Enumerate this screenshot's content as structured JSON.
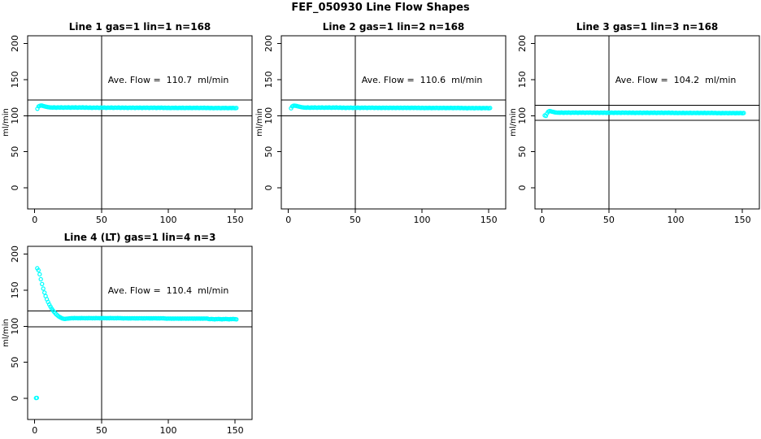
{
  "title": "FEF_050930  Line Flow Shapes",
  "marker_color": "#00FFFF",
  "chart_data": [
    {
      "type": "scatter",
      "title": "Line 1 gas=1 lin=1 n=168",
      "annotation": "Ave. Flow =  110.7  ml/min",
      "ave_flow": 110.7,
      "ylabel": "ml/min",
      "x_ticks": [
        0,
        50,
        100,
        150
      ],
      "y_ticks": [
        0,
        50,
        100,
        150,
        200
      ],
      "xlim": [
        -6,
        163
      ],
      "ylim": [
        -29,
        211
      ],
      "vline_x": 50,
      "hlines": [
        99.6,
        121.8
      ],
      "marker": "open-circle",
      "grid": {
        "row": 0,
        "col": 0
      },
      "x_start": 2,
      "x_step": 0.892,
      "y": [
        109.5,
        112.8,
        113.6,
        114.0,
        113.8,
        113.4,
        112.9,
        112.5,
        112.1,
        111.8,
        111.5,
        111.3,
        111.3,
        111.1,
        111.5,
        111.2,
        111.0,
        111.4,
        111.3,
        111.1,
        111.5,
        111.2,
        111.0,
        111.4,
        111.3,
        111.1,
        111.5,
        111.2,
        111.0,
        111.4,
        111.3,
        111.1,
        111.5,
        111.2,
        111.0,
        111.4,
        111.3,
        111.1,
        111.5,
        111.2,
        111.0,
        111.4,
        111.1,
        110.9,
        111.3,
        111.0,
        110.8,
        111.2,
        111.1,
        110.9,
        111.3,
        111.0,
        110.8,
        111.2,
        111.1,
        110.9,
        111.3,
        111.0,
        110.8,
        111.2,
        111.1,
        110.9,
        111.3,
        111.0,
        110.8,
        111.2,
        111.1,
        110.9,
        111.3,
        111.0,
        110.8,
        111.2,
        111.0,
        110.8,
        111.2,
        110.9,
        110.7,
        111.1,
        111.0,
        110.8,
        111.2,
        110.9,
        110.7,
        111.1,
        111.0,
        110.8,
        111.2,
        110.9,
        110.7,
        111.1,
        111.0,
        110.8,
        111.2,
        110.9,
        110.7,
        111.1,
        111.0,
        110.8,
        111.2,
        110.9,
        110.7,
        111.1,
        111.0,
        110.8,
        111.2,
        110.9,
        110.7,
        111.1,
        110.8,
        110.6,
        111.0,
        110.7,
        110.5,
        110.9,
        110.8,
        110.6,
        111.0,
        110.7,
        110.5,
        110.9,
        110.8,
        110.6,
        111.0,
        110.7,
        110.5,
        110.9,
        110.8,
        110.6,
        111.0,
        110.7,
        110.5,
        110.9,
        110.8,
        110.6,
        111.0,
        110.7,
        110.5,
        110.9,
        110.8,
        110.6,
        111.0,
        110.7,
        110.5,
        110.9,
        110.6,
        110.4,
        110.8,
        110.5,
        110.3,
        110.7,
        110.6,
        110.4,
        110.8,
        110.5,
        110.3,
        110.7,
        110.6,
        110.4,
        110.8,
        110.5,
        110.3,
        110.7,
        110.6,
        110.4,
        110.8,
        110.5,
        110.3,
        110.7
      ]
    },
    {
      "type": "scatter",
      "title": "Line 2 gas=1 lin=2 n=168",
      "annotation": "Ave. Flow =  110.6  ml/min",
      "ave_flow": 110.6,
      "ylabel": "ml/min",
      "x_ticks": [
        0,
        50,
        100,
        150
      ],
      "y_ticks": [
        0,
        50,
        100,
        150,
        200
      ],
      "xlim": [
        -6,
        163
      ],
      "ylim": [
        -29,
        211
      ],
      "vline_x": 50,
      "hlines": [
        99.5,
        121.7
      ],
      "marker": "open-circle",
      "grid": {
        "row": 0,
        "col": 1
      },
      "x_start": 2,
      "x_step": 0.892,
      "y": [
        110.2,
        112.9,
        113.7,
        113.9,
        113.6,
        113.2,
        112.8,
        112.4,
        112.0,
        111.7,
        111.4,
        111.2,
        111.2,
        111.0,
        111.4,
        111.1,
        110.9,
        111.3,
        111.2,
        111.0,
        111.4,
        111.1,
        110.9,
        111.3,
        111.2,
        111.0,
        111.4,
        111.1,
        110.9,
        111.3,
        111.2,
        111.0,
        111.4,
        111.1,
        110.9,
        111.3,
        111.2,
        111.0,
        111.4,
        111.1,
        110.9,
        111.3,
        111.0,
        110.8,
        111.2,
        110.9,
        110.7,
        111.1,
        111.0,
        110.8,
        111.2,
        110.9,
        110.7,
        111.1,
        111.0,
        110.8,
        111.2,
        110.9,
        110.7,
        111.1,
        111.0,
        110.8,
        111.2,
        110.9,
        110.7,
        111.1,
        111.0,
        110.8,
        111.2,
        110.9,
        110.7,
        111.1,
        110.9,
        110.7,
        111.1,
        110.8,
        110.6,
        111.0,
        110.9,
        110.7,
        111.1,
        110.8,
        110.6,
        111.0,
        110.9,
        110.7,
        111.1,
        110.8,
        110.6,
        111.0,
        110.9,
        110.7,
        111.1,
        110.8,
        110.6,
        111.0,
        110.9,
        110.7,
        111.1,
        110.8,
        110.6,
        111.0,
        110.9,
        110.7,
        111.1,
        110.8,
        110.6,
        111.0,
        110.7,
        110.5,
        110.9,
        110.6,
        110.4,
        110.8,
        110.7,
        110.5,
        110.9,
        110.6,
        110.4,
        110.8,
        110.7,
        110.5,
        110.9,
        110.6,
        110.4,
        110.8,
        110.7,
        110.5,
        110.9,
        110.6,
        110.4,
        110.8,
        110.7,
        110.5,
        110.9,
        110.6,
        110.4,
        110.8,
        110.7,
        110.5,
        110.9,
        110.6,
        110.4,
        110.8,
        110.5,
        110.3,
        110.7,
        110.4,
        110.2,
        110.6,
        110.5,
        110.3,
        110.7,
        110.4,
        110.2,
        110.6,
        110.5,
        110.3,
        110.7,
        110.4,
        110.2,
        110.6,
        110.5,
        110.3,
        110.7,
        110.4,
        110.2,
        110.6
      ]
    },
    {
      "type": "scatter",
      "title": "Line 3 gas=1 lin=3 n=168",
      "annotation": "Ave. Flow =  104.2  ml/min",
      "ave_flow": 104.2,
      "ylabel": "ml/min",
      "x_ticks": [
        0,
        50,
        100,
        150
      ],
      "y_ticks": [
        0,
        50,
        100,
        150,
        200
      ],
      "xlim": [
        -6,
        163
      ],
      "ylim": [
        -29,
        211
      ],
      "vline_x": 50,
      "hlines": [
        93.8,
        114.6
      ],
      "marker": "open-circle",
      "grid": {
        "row": 0,
        "col": 2
      },
      "x_start": 2,
      "x_step": 0.892,
      "y": [
        100.3,
        99.6,
        103.2,
        105.6,
        106.4,
        106.1,
        105.6,
        105.2,
        104.8,
        104.5,
        104.3,
        104.1,
        104.2,
        104.0,
        104.4,
        104.1,
        103.9,
        104.3,
        104.2,
        104.0,
        104.4,
        104.1,
        103.9,
        104.3,
        104.2,
        104.0,
        104.4,
        104.1,
        103.9,
        104.3,
        104.2,
        104.0,
        104.4,
        104.1,
        103.9,
        104.3,
        104.2,
        104.0,
        104.4,
        104.1,
        103.9,
        104.3,
        104.1,
        103.9,
        104.3,
        104.0,
        103.8,
        104.2,
        104.1,
        103.9,
        104.3,
        104.0,
        103.8,
        104.2,
        104.1,
        103.9,
        104.3,
        104.0,
        103.8,
        104.2,
        104.1,
        103.9,
        104.3,
        104.0,
        103.8,
        104.2,
        104.1,
        103.9,
        104.3,
        104.0,
        103.8,
        104.2,
        104.0,
        103.8,
        104.2,
        103.9,
        103.7,
        104.1,
        104.0,
        103.8,
        104.2,
        103.9,
        103.7,
        104.1,
        104.0,
        103.8,
        104.2,
        103.9,
        103.7,
        104.1,
        104.0,
        103.8,
        104.2,
        103.9,
        103.7,
        104.1,
        104.0,
        103.8,
        104.2,
        103.9,
        103.7,
        104.1,
        104.0,
        103.8,
        104.2,
        103.9,
        103.7,
        104.1,
        103.8,
        103.6,
        104.0,
        103.7,
        103.5,
        103.9,
        103.8,
        103.6,
        104.0,
        103.7,
        103.5,
        103.9,
        103.8,
        103.6,
        104.0,
        103.7,
        103.5,
        103.9,
        103.8,
        103.6,
        104.0,
        103.7,
        103.5,
        103.9,
        103.8,
        103.6,
        104.0,
        103.7,
        103.5,
        103.9,
        103.8,
        103.6,
        104.0,
        103.7,
        103.5,
        103.9,
        103.6,
        103.4,
        103.8,
        103.5,
        103.3,
        103.7,
        103.6,
        103.4,
        103.8,
        103.5,
        103.3,
        103.7,
        103.6,
        103.4,
        103.8,
        103.5,
        103.3,
        103.7,
        103.6,
        103.4,
        103.8,
        103.5,
        103.3,
        103.7
      ]
    },
    {
      "type": "scatter",
      "title": "Line 4 (LT) gas=1 lin=4 n=3",
      "annotation": "Ave. Flow =  110.4  ml/min",
      "ave_flow": 110.4,
      "ylabel": "ml/min",
      "x_ticks": [
        0,
        50,
        100,
        150
      ],
      "y_ticks": [
        0,
        50,
        100,
        150,
        200
      ],
      "xlim": [
        -6,
        163
      ],
      "ylim": [
        -29,
        211
      ],
      "vline_x": 50,
      "hlines": [
        99.4,
        121.4
      ],
      "marker": "open-circle",
      "grid": {
        "row": 1,
        "col": 0
      },
      "x_start": 1,
      "x_step": 0.898,
      "extra_points": [
        [
          1.6,
          0.7
        ]
      ],
      "y": [
        0.4,
        180.3,
        177.6,
        171.9,
        165.1,
        158.4,
        152.1,
        146.6,
        141.7,
        137.4,
        133.5,
        130.1,
        127.1,
        124.4,
        122.0,
        119.9,
        118.0,
        116.3,
        114.8,
        113.5,
        112.4,
        111.5,
        110.8,
        110.3,
        110.1,
        110.3,
        110.5,
        110.7,
        110.9,
        111.0,
        111.2,
        111.0,
        111.3,
        111.1,
        111.2,
        111.0,
        111.2,
        111.0,
        111.3,
        111.1,
        111.2,
        111.0,
        111.2,
        111.0,
        111.3,
        111.1,
        111.2,
        111.0,
        111.2,
        111.0,
        111.3,
        111.1,
        111.2,
        111.0,
        111.2,
        111.0,
        111.3,
        111.1,
        111.2,
        111.0,
        111.2,
        111.0,
        111.3,
        111.1,
        111.2,
        111.0,
        111.2,
        111.0,
        111.3,
        111.1,
        111.2,
        111.0,
        111.0,
        110.8,
        111.1,
        110.9,
        111.0,
        110.8,
        111.0,
        110.8,
        111.1,
        110.9,
        111.0,
        110.8,
        111.0,
        110.8,
        111.1,
        110.9,
        111.0,
        110.8,
        111.0,
        110.8,
        111.1,
        110.9,
        111.0,
        110.8,
        111.0,
        110.8,
        111.1,
        110.9,
        111.0,
        110.8,
        111.0,
        110.8,
        111.1,
        110.9,
        111.0,
        110.8,
        110.6,
        110.4,
        110.7,
        110.5,
        110.6,
        110.4,
        110.6,
        110.4,
        110.7,
        110.5,
        110.6,
        110.4,
        110.6,
        110.4,
        110.7,
        110.5,
        110.6,
        110.4,
        110.6,
        110.4,
        110.7,
        110.5,
        110.6,
        110.4,
        110.6,
        110.4,
        110.7,
        110.5,
        110.6,
        110.4,
        110.6,
        110.4,
        110.7,
        110.5,
        110.6,
        110.4,
        110.0,
        109.8,
        110.1,
        109.9,
        109.7,
        109.5,
        110.0,
        109.8,
        110.1,
        109.9,
        109.7,
        109.5,
        110.0,
        109.8,
        110.1,
        109.9,
        109.7,
        109.5,
        110.0,
        109.8,
        110.1,
        109.9,
        109.7,
        109.5
      ]
    }
  ]
}
